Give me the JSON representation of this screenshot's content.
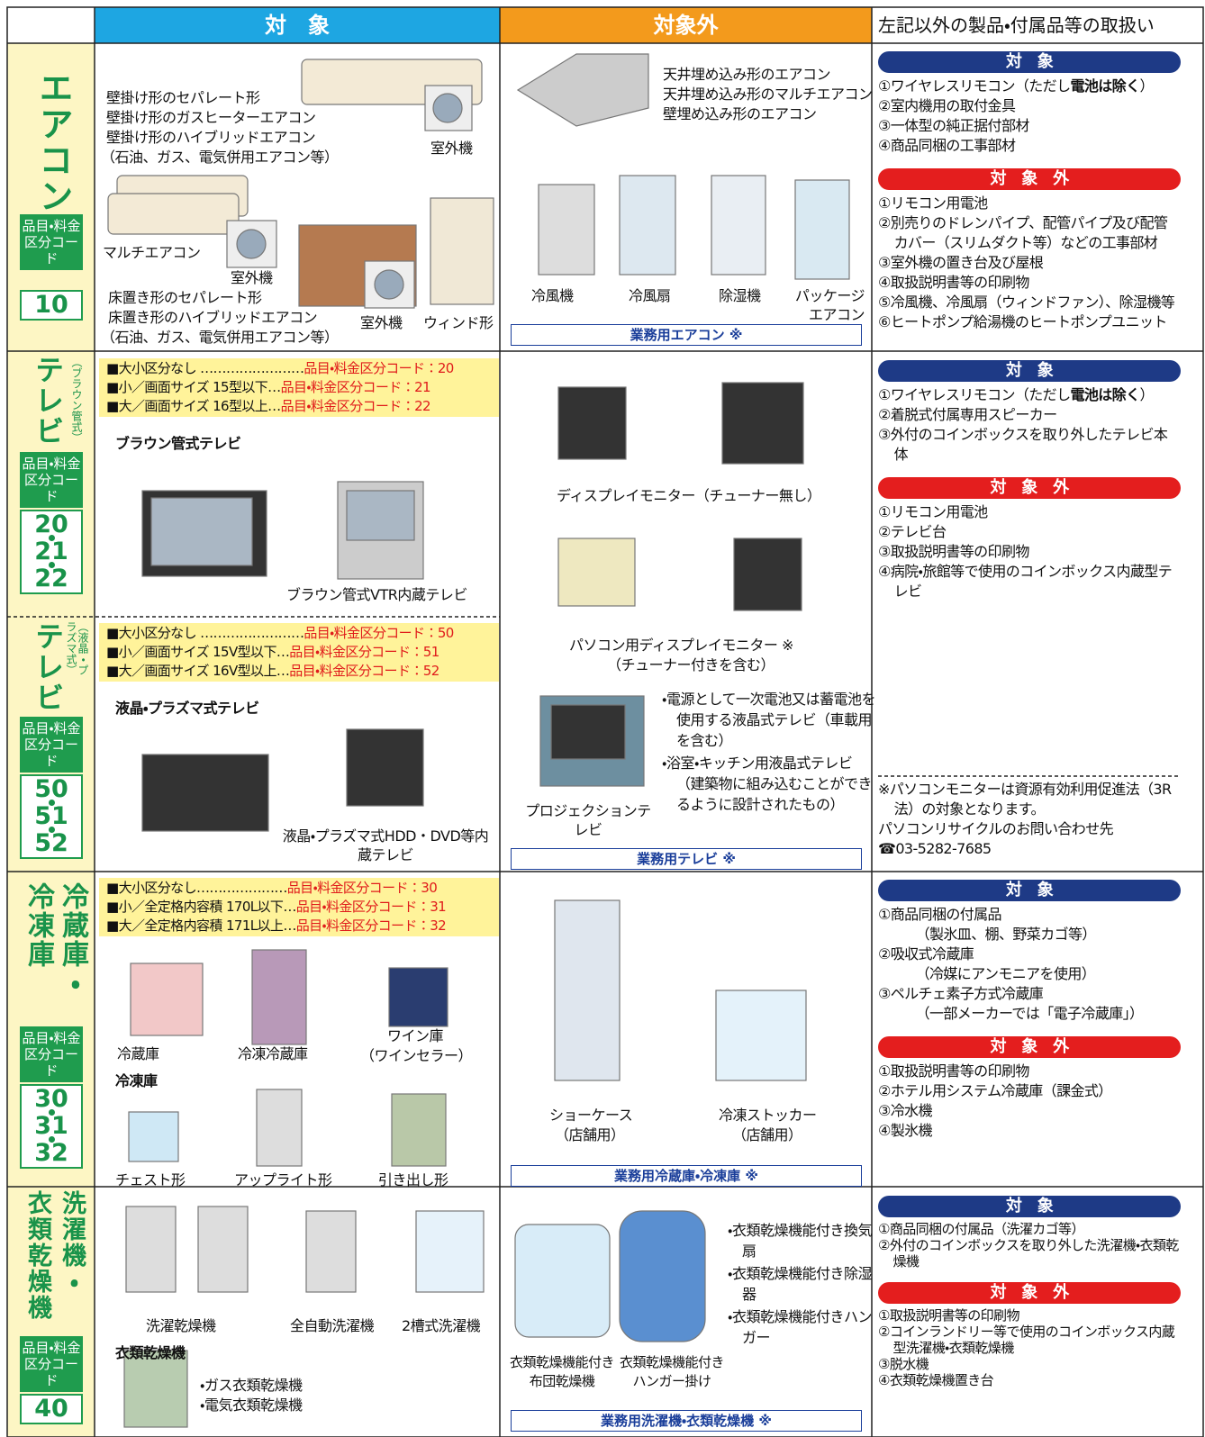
{
  "header": {
    "target": "対　象",
    "non_target": "対象外",
    "other": "左記以外の製品・付属品等の取扱い"
  },
  "aircon": {
    "category": [
      "エアコン"
    ],
    "code_label": "品目・料金区分コード",
    "codes": [
      "10"
    ],
    "target": [
      "壁掛け形のセパレート形",
      "壁掛け形のガスヒーターエアコン",
      "壁掛け形のハイブリッドエアコン",
      "（石油、ガス、電気併用エアコン等）",
      "室外機",
      "マルチエアコン",
      "室外機",
      "床置き形のセパレート形",
      "床置き形のハイブリッドエアコン",
      "（石油、ガス、電気併用エアコン等）",
      "室外機",
      "ウィンド形"
    ],
    "non_target": [
      "天井埋め込み形のエアコン",
      "天井埋め込み形のマルチエアコン",
      "壁埋め込み形のエアコン",
      "冷風機",
      "冷風扇",
      "除湿機",
      "パッケージエアコン"
    ],
    "business": "業務用エアコン ※"
  },
  "tv_crt": {
    "category": [
      "テレビ"
    ],
    "sub": "（ブラウン管式）",
    "code_label": "品目・料金区分コード",
    "codes": [
      "20",
      "21",
      "22"
    ],
    "classes": [
      {
        "name": "■大小区分なし ……………………",
        "code": "品目・料金区分コード：20"
      },
      {
        "name": "■小／画面サイズ 15型以下…",
        "code": "品目・料金区分コード：21"
      },
      {
        "name": "■大／画面サイズ 16型以上…",
        "code": "品目・料金区分コード：22"
      }
    ],
    "heading": "ブラウン管式テレビ",
    "target": [
      "ブラウン管式VTR内蔵テレビ"
    ]
  },
  "tv_lcd": {
    "category": [
      "テレビ"
    ],
    "sub": "（液晶・プラズマ式）",
    "code_label": "品目・料金区分コード",
    "codes": [
      "50",
      "51",
      "52"
    ],
    "classes": [
      {
        "name": "■大小区分なし ……………………",
        "code": "品目・料金区分コード：50"
      },
      {
        "name": "■小／画面サイズ 15V型以下…",
        "code": "品目・料金区分コード：51"
      },
      {
        "name": "■大／画面サイズ 16V型以上…",
        "code": "品目・料金区分コード：52"
      }
    ],
    "heading": "液晶・プラズマ式テレビ",
    "target": [
      "液晶・プラズマ式HDD・DVD等内蔵テレビ"
    ]
  },
  "tv_non_target": {
    "labels": [
      "ディスプレイモニター（チューナー無し）",
      "パソコン用ディスプレイモニター ※",
      "（チューナー付きを含む）",
      "プロジェクションテレビ"
    ],
    "bullets": [
      "・電源として一次電池又は蓄電池を使用する液晶式テレビ（車載用を含む）",
      "・浴室・キッチン用液晶式テレビ（建築物に組み込むことができるように設計されたもの）"
    ],
    "business": "業務用テレビ ※"
  },
  "fridge": {
    "category": [
      "冷蔵庫・",
      "冷凍庫"
    ],
    "code_label": "品目・料金区分コード",
    "codes": [
      "30",
      "31",
      "32"
    ],
    "classes": [
      {
        "name": "■大小区分なし…………………",
        "code": "品目・料金区分コード：30"
      },
      {
        "name": "■小／全定格内容積 170L以下…",
        "code": "品目・料金区分コード：31"
      },
      {
        "name": "■大／全定格内容積 171L以上…",
        "code": "品目・料金区分コード：32"
      }
    ],
    "target": [
      "冷蔵庫",
      "冷凍冷蔵庫",
      "ワイン庫",
      "（ワインセラー）",
      "冷凍庫",
      "チェスト形",
      "アップライト形",
      "引き出し形"
    ],
    "non_target": [
      "ショーケース",
      "（店舗用）",
      "冷凍ストッカー",
      "（店舗用）"
    ],
    "business": "業務用冷蔵庫・冷凍庫 ※"
  },
  "washer": {
    "category": [
      "洗濯機・",
      "衣類乾燥機"
    ],
    "code_label": "品目・料金区分コード",
    "codes": [
      "40"
    ],
    "target": [
      "洗濯乾燥機",
      "全自動洗濯機",
      "2槽式洗濯機",
      "衣類乾燥機",
      "・ガス衣類乾燥機",
      "・電気衣類乾燥機"
    ],
    "non_target": [
      "衣類乾燥機能付き布団乾燥機",
      "衣類乾燥機能付きハンガー掛け"
    ],
    "bullets": [
      "・衣類乾燥機能付き換気扇",
      "・衣類乾燥機能付き除湿器",
      "・衣類乾燥機能付きハンガー"
    ],
    "business": "業務用洗濯機・衣類乾燥機 ※"
  },
  "other": {
    "aircon": {
      "target_heading": "対　象",
      "target_items": [
        [
          "①ワイヤレスリモコン（ただし",
          "電池は除く",
          "）"
        ],
        "②室内機用の取付金具",
        "③一体型の純正据付部材",
        "④商品同梱の工事部材"
      ],
      "non_target_heading": "対　象　外",
      "non_target_items": [
        "①リモコン用電池",
        "②別売りのドレンパイプ、配管パイプ及び配管カバー（スリムダクト等）などの工事部材",
        "③室外機の置き台及び屋根",
        "④取扱説明書等の印刷物",
        "⑤冷風機、冷風扇（ウィンドファン）、除湿機等",
        "⑥ヒートポンプ給湯機のヒートポンプユニット"
      ]
    },
    "tv": {
      "target_heading": "対　象",
      "target_items": [
        [
          "①ワイヤレスリモコン（ただし",
          "電池は除く",
          "）"
        ],
        "②着脱式付属専用スピーカー",
        "③外付のコインボックスを取り外したテレビ本体"
      ],
      "non_target_heading": "対　象　外",
      "non_target_items": [
        "①リモコン用電池",
        "②テレビ台",
        "③取扱説明書等の印刷物",
        "④病院・旅館等で使用のコインボックス内蔵型テレビ"
      ],
      "note": [
        "※パソコンモニターは資源有効利用促進法（3R法）の対象となります。",
        "パソコンリサイクルのお問い合わせ先",
        "☎03-5282-7685"
      ]
    },
    "fridge": {
      "target_heading": "対　象",
      "target_items": [
        "①商品同梱の付属品",
        "（製氷皿、棚、野菜カゴ等）",
        "②吸収式冷蔵庫",
        "（冷媒にアンモニアを使用）",
        "③ペルチェ素子方式冷蔵庫",
        "（一部メーカーでは「電子冷蔵庫」）"
      ],
      "non_target_heading": "対　象　外",
      "non_target_items": [
        "①取扱説明書等の印刷物",
        "②ホテル用システム冷蔵庫（課金式）",
        "③冷水機",
        "④製氷機"
      ]
    },
    "washer": {
      "target_heading": "対　象",
      "target_items": [
        "①商品同梱の付属品（洗濯カゴ等）",
        "②外付のコインボックスを取り外した洗濯機・衣類乾燥機"
      ],
      "non_target_heading": "対　象　外",
      "non_target_items": [
        "①取扱説明書等の印刷物",
        "②コインランドリー等で使用のコインボックス内蔵型洗濯機・衣類乾燥機",
        "③脱水機",
        "④衣類乾燥機置き台"
      ]
    }
  }
}
